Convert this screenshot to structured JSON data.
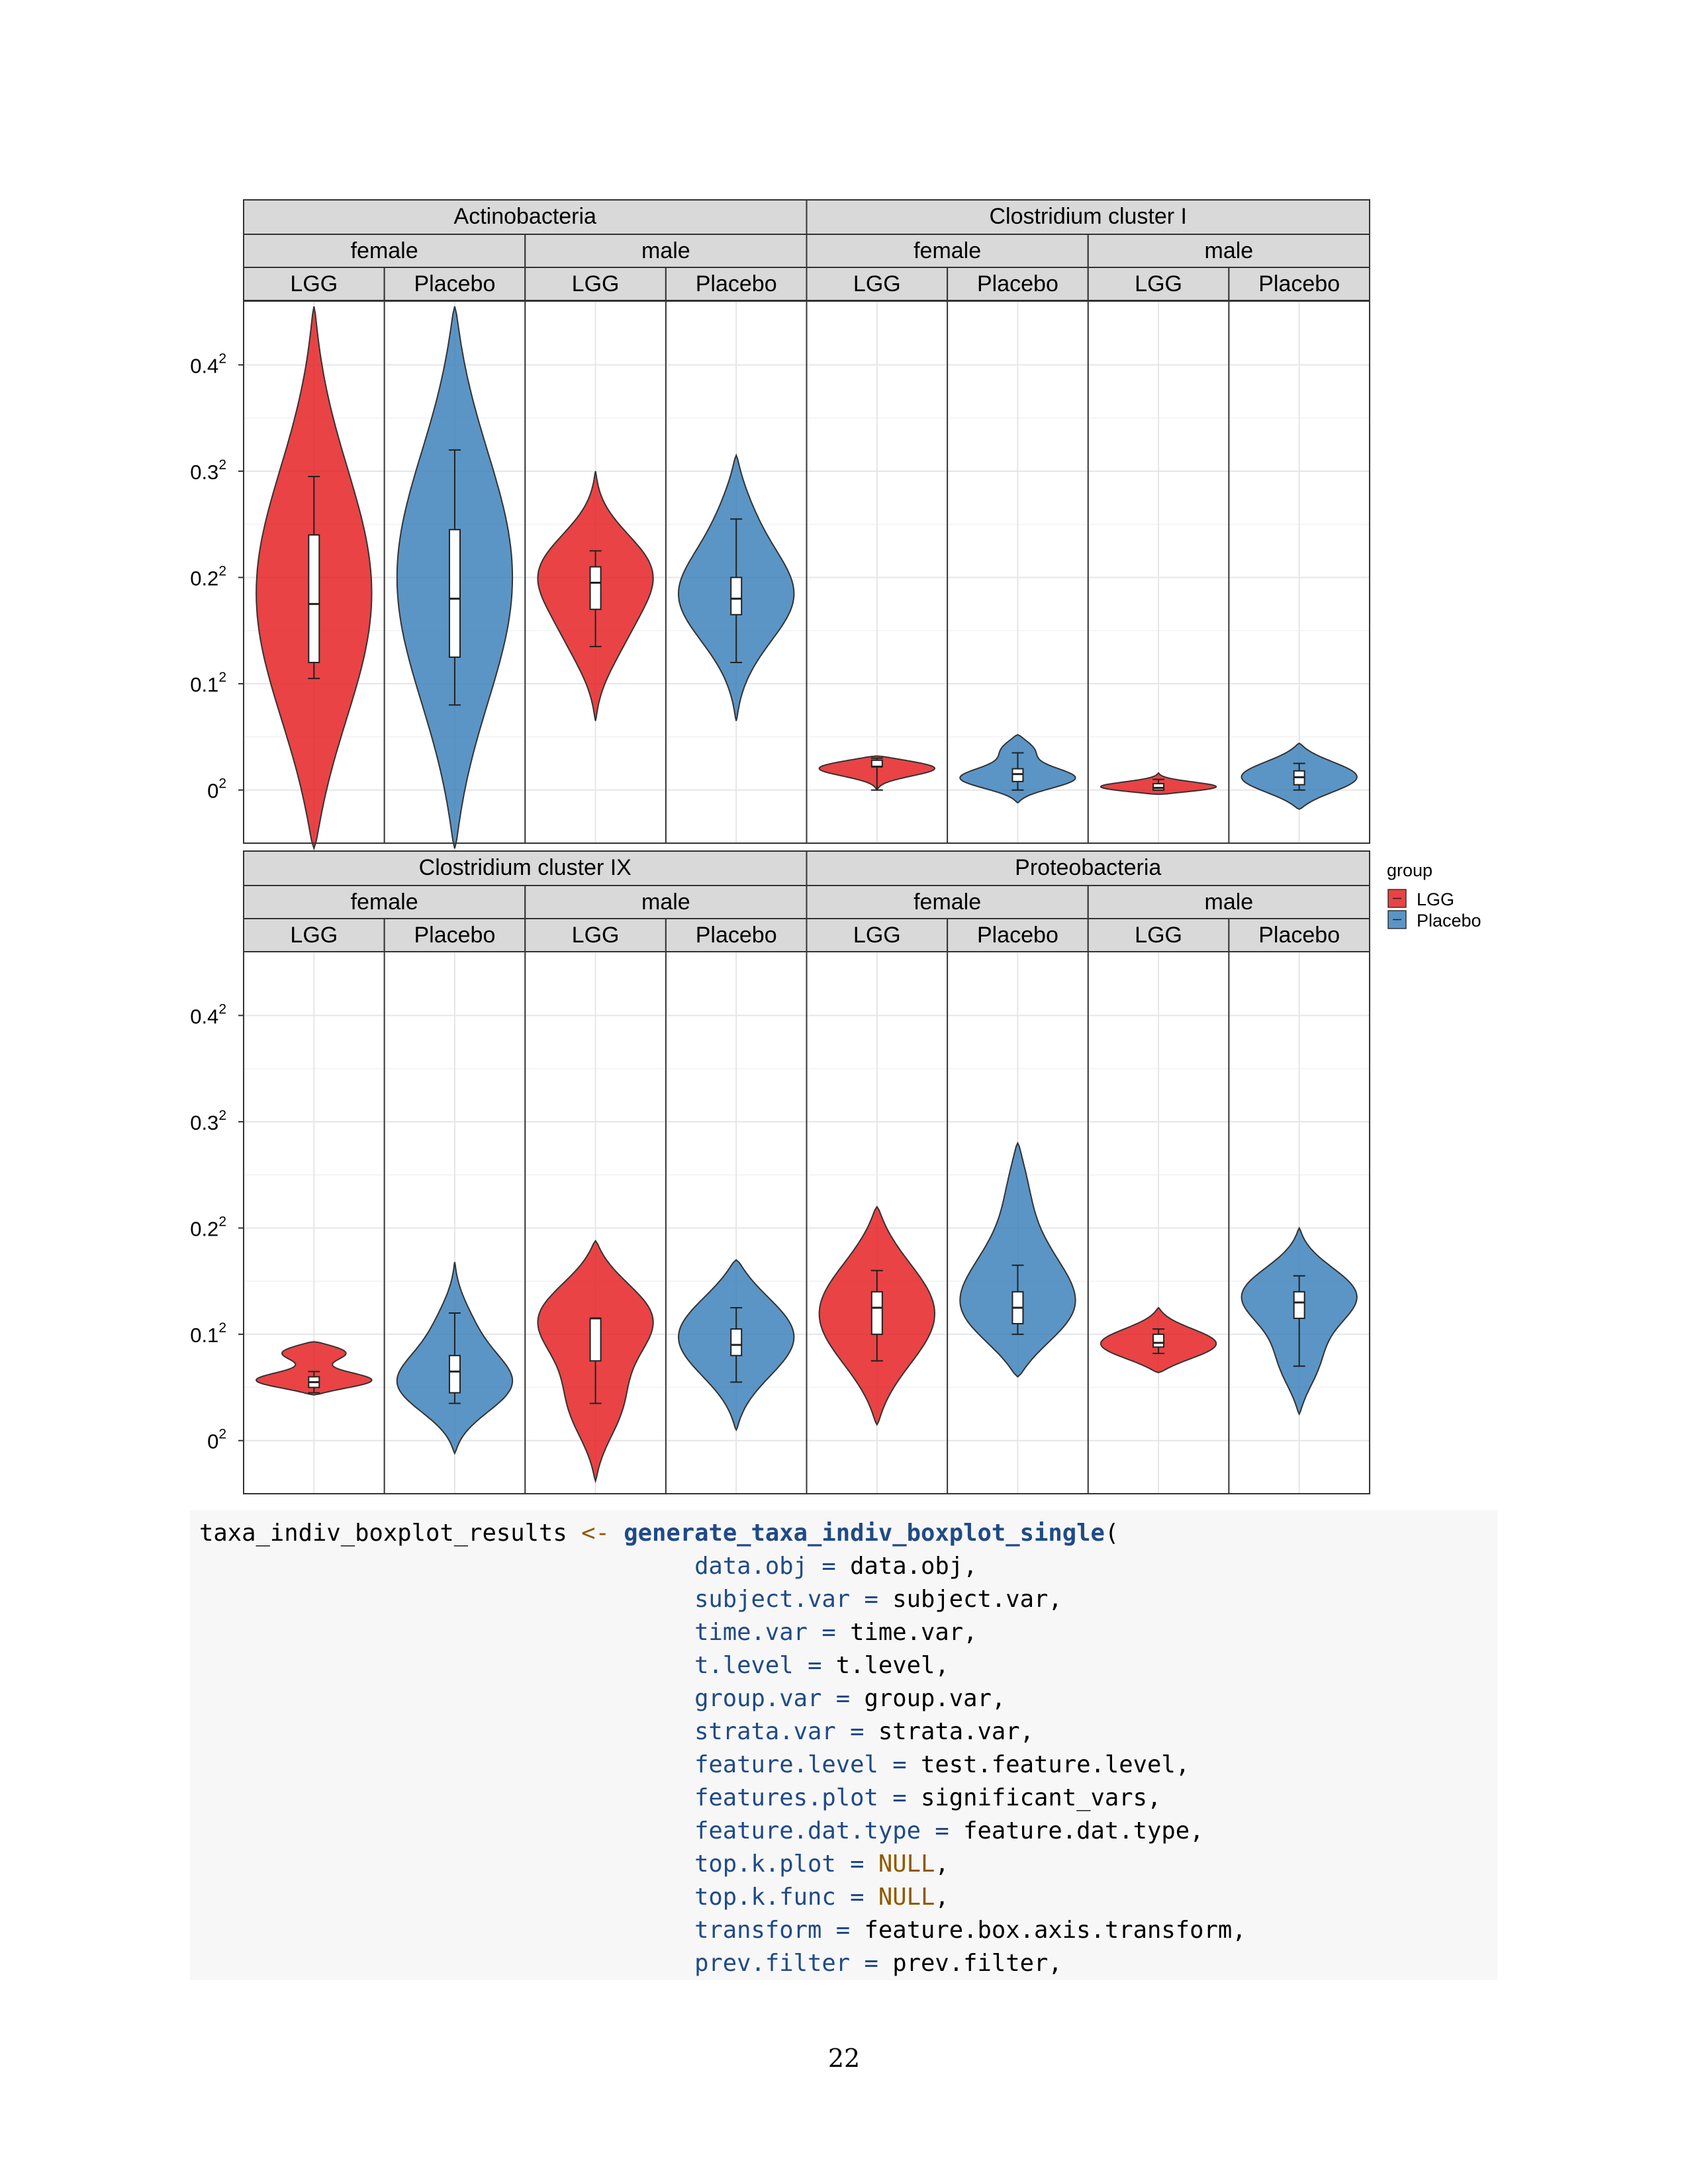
{
  "chart_data": {
    "type": "violin",
    "y_axis": {
      "tick_values": [
        0,
        0.1,
        0.2,
        0.3,
        0.4
      ],
      "tick_labels": [
        "0",
        "0.1",
        "0.2",
        "0.3",
        "0.4"
      ],
      "tick_exponent": "2",
      "range": [
        -0.05,
        0.46
      ]
    },
    "legend": {
      "title": "group",
      "position": "right",
      "entries": [
        {
          "name": "LGG",
          "color": "#E41A1C"
        },
        {
          "name": "Placebo",
          "color": "#377EB8"
        }
      ]
    },
    "grid": true,
    "panels": [
      {
        "title": "Actinobacteria",
        "strata": [
          {
            "label": "female",
            "groups": [
              {
                "name": "LGG",
                "min": -0.055,
                "max": 0.455,
                "modes": [
                  [
                    0.18,
                    0.055
                  ]
                ],
                "box": [
                  0.105,
                  0.12,
                  0.175,
                  0.24,
                  0.295
                ]
              },
              {
                "name": "Placebo",
                "min": -0.055,
                "max": 0.455,
                "modes": [
                  [
                    0.2,
                    0.055
                  ]
                ],
                "box": [
                  0.08,
                  0.125,
                  0.18,
                  0.245,
                  0.32
                ]
              }
            ]
          },
          {
            "label": "male",
            "groups": [
              {
                "name": "LGG",
                "min": 0.065,
                "max": 0.3,
                "modes": [
                  [
                    0.21,
                    0.055
                  ],
                  [
                    0.14,
                    0.025
                  ]
                ],
                "box": [
                  0.135,
                  0.17,
                  0.195,
                  0.21,
                  0.225
                ]
              },
              {
                "name": "Placebo",
                "min": 0.065,
                "max": 0.315,
                "modes": [
                  [
                    0.185,
                    0.058
                  ],
                  [
                    0.26,
                    0.02
                  ],
                  [
                    0.13,
                    0.015
                  ]
                ],
                "box": [
                  0.12,
                  0.165,
                  0.18,
                  0.2,
                  0.255
                ]
              }
            ]
          }
        ]
      },
      {
        "title": "Clostridium cluster I",
        "strata": [
          {
            "label": "female",
            "groups": [
              {
                "name": "LGG",
                "min": 0.0,
                "max": 0.032,
                "modes": [
                  [
                    0.022,
                    0.055
                  ]
                ],
                "box": [
                  0.0,
                  0.022,
                  0.022,
                  0.028,
                  0.03
                ]
              },
              {
                "name": "Placebo",
                "min": -0.012,
                "max": 0.052,
                "modes": [
                  [
                    0.01,
                    0.052
                  ],
                  [
                    0.04,
                    0.018
                  ]
                ],
                "box": [
                  0.0,
                  0.008,
                  0.015,
                  0.02,
                  0.035
                ]
              }
            ]
          },
          {
            "label": "male",
            "groups": [
              {
                "name": "LGG",
                "min": -0.004,
                "max": 0.016,
                "modes": [
                  [
                    0.002,
                    0.055
                  ]
                ],
                "box": [
                  0.0,
                  0.0,
                  0.002,
                  0.006,
                  0.01
                ]
              },
              {
                "name": "Placebo",
                "min": -0.018,
                "max": 0.044,
                "modes": [
                  [
                    0.012,
                    0.055
                  ]
                ],
                "box": [
                  0.0,
                  0.005,
                  0.012,
                  0.018,
                  0.025
                ]
              }
            ]
          }
        ]
      },
      {
        "title": "Clostridium cluster IX",
        "strata": [
          {
            "label": "female",
            "groups": [
              {
                "name": "LGG",
                "min": 0.043,
                "max": 0.093,
                "modes": [
                  [
                    0.055,
                    0.055
                  ],
                  [
                    0.085,
                    0.035
                  ]
                ],
                "box": [
                  0.045,
                  0.05,
                  0.055,
                  0.06,
                  0.065
                ]
              },
              {
                "name": "Placebo",
                "min": -0.012,
                "max": 0.168,
                "modes": [
                  [
                    0.05,
                    0.055
                  ],
                  [
                    0.11,
                    0.016
                  ]
                ],
                "box": [
                  0.035,
                  0.045,
                  0.065,
                  0.08,
                  0.12
                ]
              }
            ]
          },
          {
            "label": "male",
            "groups": [
              {
                "name": "LGG",
                "min": -0.038,
                "max": 0.188,
                "modes": [
                  [
                    0.12,
                    0.055
                  ],
                  [
                    0.03,
                    0.025
                  ]
                ],
                "box": [
                  0.035,
                  0.075,
                  0.115,
                  0.115,
                  0.115
                ]
              },
              {
                "name": "Placebo",
                "min": 0.01,
                "max": 0.17,
                "modes": [
                  [
                    0.1,
                    0.055
                  ]
                ],
                "box": [
                  0.055,
                  0.08,
                  0.09,
                  0.105,
                  0.125
                ]
              }
            ]
          }
        ]
      },
      {
        "title": "Proteobacteria",
        "strata": [
          {
            "label": "female",
            "groups": [
              {
                "name": "LGG",
                "min": 0.015,
                "max": 0.22,
                "modes": [
                  [
                    0.12,
                    0.055
                  ]
                ],
                "box": [
                  0.075,
                  0.1,
                  0.125,
                  0.14,
                  0.16
                ]
              },
              {
                "name": "Placebo",
                "min": 0.06,
                "max": 0.28,
                "modes": [
                  [
                    0.115,
                    0.055
                  ],
                  [
                    0.17,
                    0.022
                  ],
                  [
                    0.245,
                    0.012
                  ]
                ],
                "box": [
                  0.1,
                  0.11,
                  0.125,
                  0.14,
                  0.165
                ]
              }
            ]
          },
          {
            "label": "male",
            "groups": [
              {
                "name": "LGG",
                "min": 0.064,
                "max": 0.125,
                "modes": [
                  [
                    0.09,
                    0.055
                  ]
                ],
                "box": [
                  0.082,
                  0.088,
                  0.092,
                  0.1,
                  0.105
                ]
              },
              {
                "name": "Placebo",
                "min": 0.025,
                "max": 0.2,
                "modes": [
                  [
                    0.14,
                    0.055
                  ],
                  [
                    0.07,
                    0.02
                  ]
                ],
                "box": [
                  0.07,
                  0.115,
                  0.13,
                  0.14,
                  0.155
                ]
              }
            ]
          }
        ]
      }
    ]
  },
  "code": {
    "lines": [
      [
        {
          "t": "taxa_indiv_boxplot_results "
        },
        {
          "t": "<-",
          "c": "op"
        },
        {
          "t": " "
        },
        {
          "t": "generate_taxa_indiv_boxplot_single",
          "c": "fn"
        },
        {
          "t": "("
        }
      ],
      [
        {
          "t": "                                   "
        },
        {
          "t": "data.obj",
          "c": "arg"
        },
        {
          "t": " "
        },
        {
          "t": "=",
          "c": "arg"
        },
        {
          "t": " data.obj,"
        }
      ],
      [
        {
          "t": "                                   "
        },
        {
          "t": "subject.var",
          "c": "arg"
        },
        {
          "t": " "
        },
        {
          "t": "=",
          "c": "arg"
        },
        {
          "t": " subject.var,"
        }
      ],
      [
        {
          "t": "                                   "
        },
        {
          "t": "time.var",
          "c": "arg"
        },
        {
          "t": " "
        },
        {
          "t": "=",
          "c": "arg"
        },
        {
          "t": " time.var,"
        }
      ],
      [
        {
          "t": "                                   "
        },
        {
          "t": "t.level",
          "c": "arg"
        },
        {
          "t": " "
        },
        {
          "t": "=",
          "c": "arg"
        },
        {
          "t": " t.level,"
        }
      ],
      [
        {
          "t": "                                   "
        },
        {
          "t": "group.var",
          "c": "arg"
        },
        {
          "t": " "
        },
        {
          "t": "=",
          "c": "arg"
        },
        {
          "t": " group.var,"
        }
      ],
      [
        {
          "t": "                                   "
        },
        {
          "t": "strata.var",
          "c": "arg"
        },
        {
          "t": " "
        },
        {
          "t": "=",
          "c": "arg"
        },
        {
          "t": " strata.var,"
        }
      ],
      [
        {
          "t": "                                   "
        },
        {
          "t": "feature.level",
          "c": "arg"
        },
        {
          "t": " "
        },
        {
          "t": "=",
          "c": "arg"
        },
        {
          "t": " test.feature.level,"
        }
      ],
      [
        {
          "t": "                                   "
        },
        {
          "t": "features.plot",
          "c": "arg"
        },
        {
          "t": " "
        },
        {
          "t": "=",
          "c": "arg"
        },
        {
          "t": " significant_vars,"
        }
      ],
      [
        {
          "t": "                                   "
        },
        {
          "t": "feature.dat.type",
          "c": "arg"
        },
        {
          "t": " "
        },
        {
          "t": "=",
          "c": "arg"
        },
        {
          "t": " feature.dat.type,"
        }
      ],
      [
        {
          "t": "                                   "
        },
        {
          "t": "top.k.plot",
          "c": "arg"
        },
        {
          "t": " "
        },
        {
          "t": "=",
          "c": "arg"
        },
        {
          "t": " "
        },
        {
          "t": "NULL",
          "c": "kw"
        },
        {
          "t": ","
        }
      ],
      [
        {
          "t": "                                   "
        },
        {
          "t": "top.k.func",
          "c": "arg"
        },
        {
          "t": " "
        },
        {
          "t": "=",
          "c": "arg"
        },
        {
          "t": " "
        },
        {
          "t": "NULL",
          "c": "kw"
        },
        {
          "t": ","
        }
      ],
      [
        {
          "t": "                                   "
        },
        {
          "t": "transform",
          "c": "arg"
        },
        {
          "t": " "
        },
        {
          "t": "=",
          "c": "arg"
        },
        {
          "t": " feature.box.axis.transform,"
        }
      ],
      [
        {
          "t": "                                   "
        },
        {
          "t": "prev.filter",
          "c": "arg"
        },
        {
          "t": " "
        },
        {
          "t": "=",
          "c": "arg"
        },
        {
          "t": " prev.filter,"
        }
      ]
    ]
  },
  "page_number": "22"
}
